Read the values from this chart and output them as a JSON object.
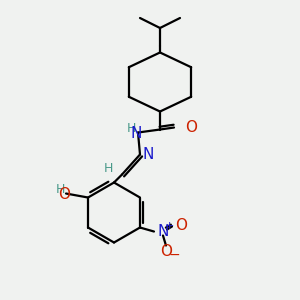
{
  "bg_color": "#f0f2f0",
  "atom_colors": {
    "C": "#000000",
    "N": "#1a1acc",
    "O": "#cc2200",
    "H": "#4a9a8a"
  },
  "bond_color": "#000000",
  "bond_width": 1.6,
  "font_size": 10,
  "fig_size": [
    3.0,
    3.0
  ],
  "dpi": 100
}
